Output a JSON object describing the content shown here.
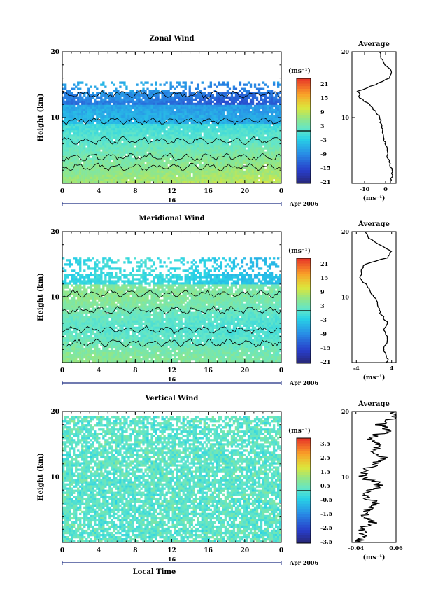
{
  "chart_data": [
    {
      "type": "heatmap",
      "title": "Zonal Wind",
      "ylabel": "Height (km)",
      "x_ticks": [
        "0",
        "4",
        "8",
        "12",
        "16",
        "20",
        "0"
      ],
      "y_ticks": [
        "20",
        "10"
      ],
      "ylim": [
        0,
        20
      ],
      "date_marker": "16",
      "date_label": "Apr 2006",
      "colorbar": {
        "unit_label": "(ms⁻¹)",
        "labels": [
          "21",
          "15",
          "9",
          "3",
          "-3",
          "-9",
          "-15",
          "-21"
        ],
        "vmin": -24,
        "vmax": 24
      },
      "profile": {
        "title": "Average",
        "x_ticks": [
          "-10",
          "0"
        ],
        "xlim": [
          -16,
          5
        ],
        "xlabel": "(ms⁻¹)",
        "y_ticks": [
          "20",
          "10"
        ],
        "heights": [
          0,
          1,
          2,
          3,
          4,
          5,
          6,
          7,
          8,
          9,
          10,
          11,
          12,
          13,
          14,
          15,
          16,
          17,
          18,
          19,
          20
        ],
        "values": [
          2,
          3,
          3,
          2,
          1,
          1,
          0,
          -1,
          -1,
          -2,
          -3,
          -5,
          -8,
          -12,
          -13,
          -5,
          2,
          3,
          0,
          -2,
          -3
        ]
      }
    },
    {
      "type": "heatmap",
      "title": "Meridional Wind",
      "ylabel": "Height (km)",
      "x_ticks": [
        "0",
        "4",
        "8",
        "12",
        "16",
        "20",
        "0"
      ],
      "y_ticks": [
        "20",
        "10"
      ],
      "ylim": [
        0,
        20
      ],
      "date_marker": "16",
      "date_label": "Apr 2006",
      "colorbar": {
        "unit_label": "(ms⁻¹)",
        "labels": [
          "21",
          "15",
          "9",
          "3",
          "-3",
          "-9",
          "-15",
          "-21"
        ],
        "vmin": -24,
        "vmax": 24
      },
      "profile": {
        "title": "Average",
        "x_ticks": [
          "-4",
          "4"
        ],
        "xlim": [
          -5,
          5
        ],
        "xlabel": "(ms⁻¹)",
        "y_ticks": [
          "20",
          "10"
        ],
        "heights": [
          0,
          1,
          2,
          3,
          4,
          5,
          6,
          7,
          8,
          9,
          10,
          11,
          12,
          13,
          14,
          15,
          16,
          17,
          18,
          19,
          20
        ],
        "values": [
          3,
          3,
          2,
          3,
          3,
          2,
          3,
          2,
          1,
          1,
          0,
          -1,
          -2,
          -3,
          -3,
          -2,
          3,
          4,
          1,
          -1,
          -2
        ]
      }
    },
    {
      "type": "heatmap",
      "title": "Vertical Wind",
      "ylabel": "Height (km)",
      "xlabel": "Local Time",
      "x_ticks": [
        "0",
        "4",
        "8",
        "12",
        "16",
        "20",
        "0"
      ],
      "y_ticks": [
        "20",
        "10"
      ],
      "ylim": [
        0,
        20
      ],
      "date_marker": "16",
      "date_label": "Apr 2006",
      "colorbar": {
        "unit_label": "(ms⁻¹)",
        "labels": [
          "3.5",
          "2.5",
          "1.5",
          "0.5",
          "-0.5",
          "-1.5",
          "-2.5",
          "-3.5"
        ],
        "vmin": -4,
        "vmax": 4
      },
      "profile": {
        "title": "Average",
        "x_ticks": [
          "-0.04",
          "0.06"
        ],
        "xlim": [
          -0.05,
          0.06
        ],
        "xlabel": "(ms⁻¹)",
        "y_ticks": [
          "20",
          "10"
        ],
        "heights": [
          0,
          1,
          2,
          3,
          4,
          5,
          6,
          7,
          8,
          9,
          10,
          11,
          12,
          13,
          14,
          15,
          16,
          17,
          18,
          19,
          20
        ],
        "values": [
          -0.03,
          -0.02,
          -0.03,
          0.0,
          -0.02,
          -0.01,
          0.01,
          -0.02,
          0.0,
          0.02,
          -0.03,
          -0.02,
          0.01,
          0.03,
          0.0,
          0.02,
          -0.01,
          0.04,
          0.02,
          0.05,
          0.06
        ]
      }
    }
  ]
}
